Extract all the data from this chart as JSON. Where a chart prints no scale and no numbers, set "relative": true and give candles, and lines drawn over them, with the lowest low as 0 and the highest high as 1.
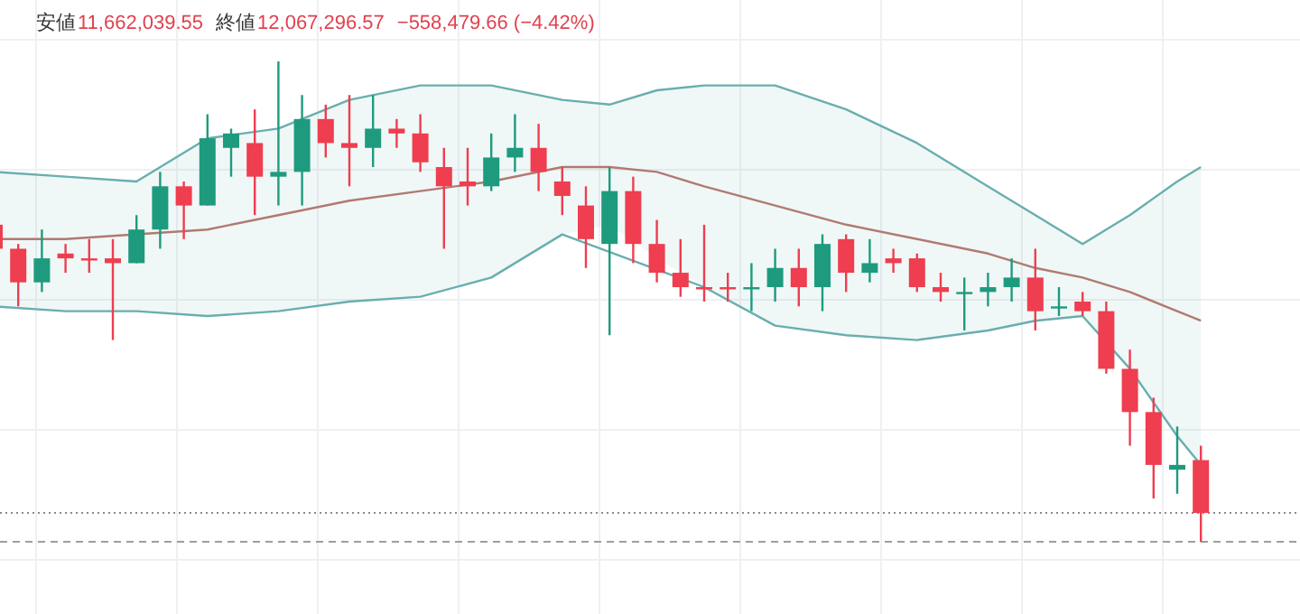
{
  "chart_data": {
    "type": "candlestick",
    "relative": true,
    "grid": true,
    "annotations": [
      "安値",
      "11,662,039.55",
      "終値",
      "12,067,296.57",
      "−558,479.66 (−4.42%)"
    ],
    "categories": [
      null,
      null,
      null,
      null,
      null,
      null,
      null,
      null,
      null,
      null,
      null,
      null,
      null,
      null,
      null,
      null,
      null,
      null,
      null,
      null,
      null,
      null,
      null,
      null,
      null,
      null,
      null,
      null,
      null,
      null,
      null,
      null,
      null,
      null,
      null,
      null,
      null,
      null,
      null,
      null,
      null,
      null,
      null,
      null,
      null,
      null,
      null,
      null,
      null,
      null,
      null,
      null
    ],
    "ohlc": [
      [
        0.66,
        0.66,
        0.61,
        0.61
      ],
      [
        0.61,
        0.62,
        0.49,
        0.54
      ],
      [
        0.54,
        0.65,
        0.52,
        0.59
      ],
      [
        0.6,
        0.62,
        0.56,
        0.59
      ],
      [
        0.59,
        0.63,
        0.56,
        0.59
      ],
      [
        0.59,
        0.63,
        0.42,
        0.58
      ],
      [
        0.58,
        0.68,
        0.58,
        0.65
      ],
      [
        0.65,
        0.77,
        0.61,
        0.74
      ],
      [
        0.74,
        0.75,
        0.63,
        0.7
      ],
      [
        0.7,
        0.89,
        0.7,
        0.84
      ],
      [
        0.82,
        0.86,
        0.76,
        0.85
      ],
      [
        0.83,
        0.9,
        0.68,
        0.76
      ],
      [
        0.76,
        1,
        0.7,
        0.77
      ],
      [
        0.77,
        0.93,
        0.7,
        0.88
      ],
      [
        0.88,
        0.91,
        0.8,
        0.83
      ],
      [
        0.83,
        0.93,
        0.74,
        0.82
      ],
      [
        0.82,
        0.93,
        0.78,
        0.86
      ],
      [
        0.86,
        0.88,
        0.82,
        0.85
      ],
      [
        0.85,
        0.89,
        0.77,
        0.79
      ],
      [
        0.78,
        0.82,
        0.61,
        0.74
      ],
      [
        0.75,
        0.82,
        0.7,
        0.74
      ],
      [
        0.74,
        0.85,
        0.73,
        0.8
      ],
      [
        0.8,
        0.89,
        0.77,
        0.82
      ],
      [
        0.82,
        0.87,
        0.73,
        0.77
      ],
      [
        0.75,
        0.78,
        0.68,
        0.72
      ],
      [
        0.7,
        0.74,
        0.57,
        0.63
      ],
      [
        0.62,
        0.78,
        0.43,
        0.73
      ],
      [
        0.73,
        0.76,
        0.58,
        0.62
      ],
      [
        0.62,
        0.67,
        0.54,
        0.56
      ],
      [
        0.56,
        0.63,
        0.51,
        0.53
      ],
      [
        0.53,
        0.66,
        0.5,
        0.53
      ],
      [
        0.53,
        0.56,
        0.5,
        0.53
      ],
      [
        0.53,
        0.58,
        0.48,
        0.53
      ],
      [
        0.53,
        0.61,
        0.5,
        0.57
      ],
      [
        0.57,
        0.61,
        0.49,
        0.53
      ],
      [
        0.53,
        0.64,
        0.48,
        0.62
      ],
      [
        0.63,
        0.64,
        0.52,
        0.56
      ],
      [
        0.56,
        0.63,
        0.54,
        0.58
      ],
      [
        0.59,
        0.61,
        0.56,
        0.58
      ],
      [
        0.59,
        0.6,
        0.52,
        0.53
      ],
      [
        0.53,
        0.56,
        0.5,
        0.52
      ],
      [
        0.52,
        0.55,
        0.44,
        0.52
      ],
      [
        0.52,
        0.56,
        0.49,
        0.53
      ],
      [
        0.53,
        0.59,
        0.5,
        0.55
      ],
      [
        0.55,
        0.61,
        0.44,
        0.48
      ],
      [
        0.49,
        0.53,
        0.47,
        0.49
      ],
      [
        0.5,
        0.52,
        0.47,
        0.48
      ],
      [
        0.48,
        0.5,
        0.35,
        0.36
      ],
      [
        0.36,
        0.4,
        0.2,
        0.27
      ],
      [
        0.27,
        0.3,
        0.09,
        0.16
      ],
      [
        0.15,
        0.24,
        0.1,
        0.16
      ],
      [
        0.17,
        0.2,
        0,
        0.06
      ]
    ],
    "colors": [
      "#ee3e4f",
      "#ee3e4f",
      "#1e9b7e",
      "#ee3e4f",
      "#ee3e4f",
      "#ee3e4f",
      "#1e9b7e",
      "#1e9b7e",
      "#ee3e4f",
      "#1e9b7e",
      "#1e9b7e",
      "#ee3e4f",
      "#1e9b7e",
      "#1e9b7e",
      "#ee3e4f",
      "#ee3e4f",
      "#1e9b7e",
      "#ee3e4f",
      "#ee3e4f",
      "#ee3e4f",
      "#ee3e4f",
      "#1e9b7e",
      "#1e9b7e",
      "#ee3e4f",
      "#ee3e4f",
      "#ee3e4f",
      "#1e9b7e",
      "#ee3e4f",
      "#ee3e4f",
      "#ee3e4f",
      "#ee3e4f",
      "#ee3e4f",
      "#1e9b7e",
      "#1e9b7e",
      "#ee3e4f",
      "#1e9b7e",
      "#ee3e4f",
      "#1e9b7e",
      "#ee3e4f",
      "#ee3e4f",
      "#ee3e4f",
      "#1e9b7e",
      "#1e9b7e",
      "#1e9b7e",
      "#ee3e4f",
      "#1e9b7e",
      "#ee3e4f",
      "#ee3e4f",
      "#ee3e4f",
      "#ee3e4f",
      "#1e9b7e",
      "#ee3e4f"
    ],
    "series": [
      {
        "type": "line",
        "color": "#6aaeae",
        "values": [
          0.77,
          null,
          null,
          0.76,
          null,
          null,
          0.75,
          null,
          null,
          0.84,
          null,
          null,
          0.86,
          null,
          null,
          0.92,
          null,
          null,
          0.95,
          null,
          null,
          0.95,
          null,
          null,
          0.92,
          null,
          0.91,
          null,
          0.94,
          null,
          0.95,
          null,
          null,
          0.95,
          null,
          null,
          0.9,
          null,
          null,
          0.83,
          null,
          null,
          0.74,
          null,
          0.68,
          null,
          0.62,
          null,
          0.68,
          null,
          0.75,
          0.78
        ],
        "lower": [
          0.49,
          null,
          null,
          0.48,
          null,
          null,
          0.48,
          null,
          null,
          0.47,
          null,
          null,
          0.48,
          null,
          null,
          0.5,
          null,
          null,
          0.51,
          null,
          null,
          0.55,
          null,
          null,
          0.64,
          null,
          0.66,
          null,
          0.59,
          null,
          0.53,
          null,
          null,
          0.45,
          null,
          null,
          0.43,
          null,
          null,
          0.42,
          null,
          null,
          0.44,
          null,
          0.46,
          null,
          0.47,
          null,
          0.36,
          null,
          0.22,
          0.16
        ],
        "upper": [
          0.77,
          null,
          null,
          0.76,
          null,
          null,
          0.75,
          null,
          null,
          0.84,
          null,
          null,
          0.86,
          null,
          null,
          0.92,
          null,
          null,
          0.95,
          null,
          null,
          0.95,
          null,
          null,
          0.92,
          null,
          0.91,
          null,
          0.94,
          null,
          0.95,
          null,
          null,
          0.95,
          null,
          null,
          0.9,
          null,
          null,
          0.83,
          null,
          null,
          0.74,
          null,
          0.68,
          null,
          0.62,
          null,
          0.68,
          null,
          0.75,
          0.78
        ]
      },
      {
        "type": "line",
        "color": "#b07a72",
        "values": [
          0.63,
          null,
          null,
          0.63,
          null,
          null,
          null,
          null,
          null,
          0.65,
          null,
          null,
          0.68,
          null,
          null,
          0.71,
          null,
          null,
          0.73,
          null,
          null,
          0.75,
          null,
          null,
          0.78,
          null,
          0.78,
          null,
          0.77,
          null,
          0.74,
          null,
          null,
          0.7,
          null,
          null,
          0.66,
          null,
          null,
          0.63,
          null,
          null,
          0.6,
          null,
          0.57,
          null,
          0.55,
          null,
          0.52,
          null,
          0.48,
          0.46
        ]
      },
      {
        "type": "line",
        "color": "#6aaeae",
        "values": [
          0.49,
          null,
          null,
          0.48,
          null,
          null,
          0.48,
          null,
          null,
          0.47,
          null,
          null,
          0.48,
          null,
          null,
          0.5,
          null,
          null,
          0.51,
          null,
          null,
          0.55,
          null,
          null,
          0.64,
          null,
          null,
          null,
          null,
          null,
          0.53,
          null,
          null,
          0.45,
          null,
          null,
          0.43,
          null,
          null,
          0.42,
          null,
          null,
          0.44,
          null,
          0.46,
          null,
          0.47,
          null,
          0.36,
          null,
          0.22,
          0.16
        ]
      }
    ],
    "ref_lines": [
      {
        "axis": "y",
        "value": 0.06,
        "line_style": "dotted",
        "color": "#8a8a8a"
      },
      {
        "axis": "y",
        "value": 0,
        "line_style": "dashed",
        "color": "#9e9e9e"
      }
    ]
  }
}
